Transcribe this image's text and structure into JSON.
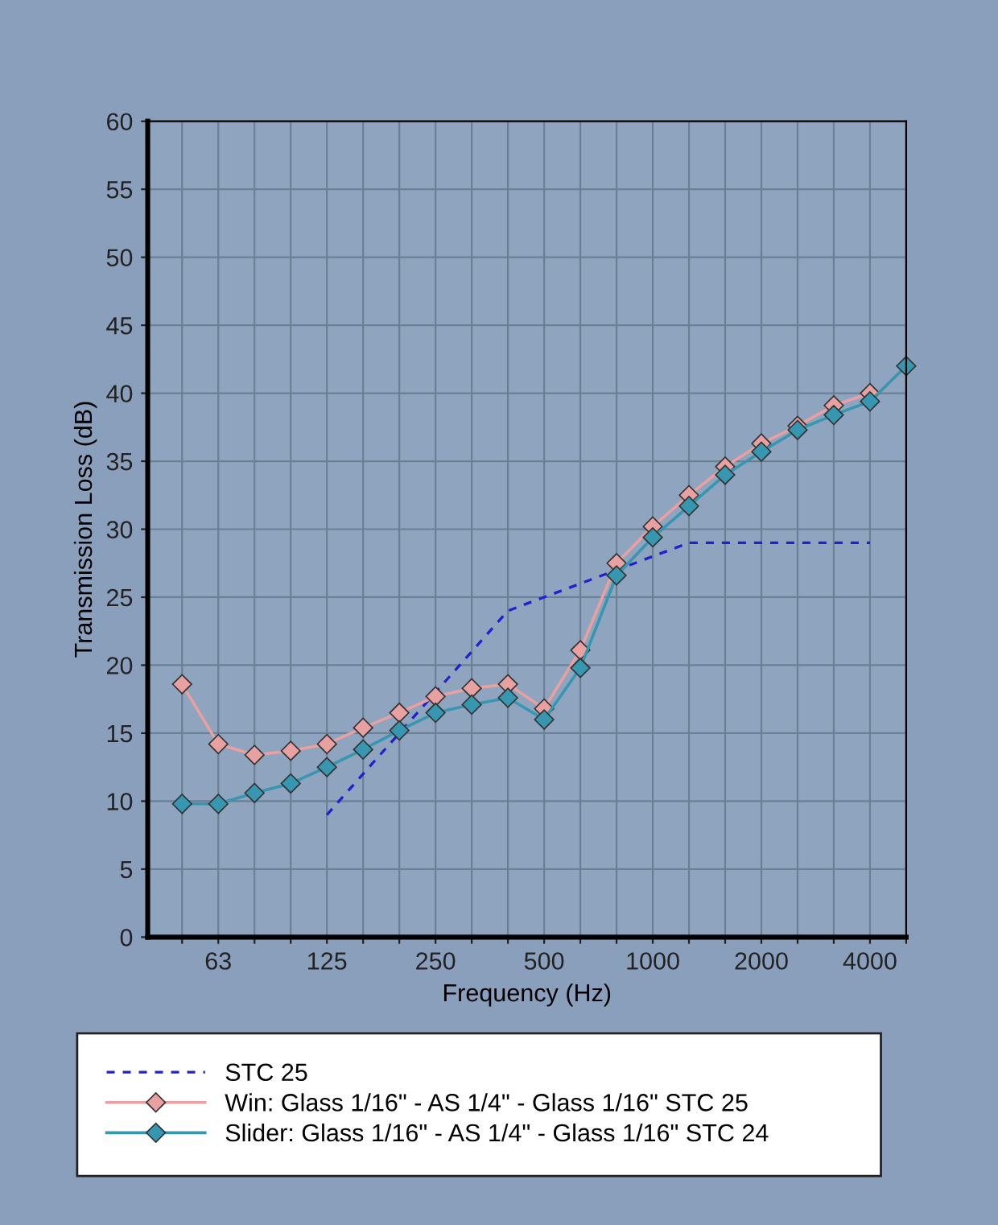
{
  "chart_data": {
    "type": "line",
    "xlabel": "Frequency (Hz)",
    "ylabel": "Transmission Loss (dB)",
    "categories": [
      null,
      "63",
      null,
      null,
      "125",
      null,
      null,
      "250",
      null,
      null,
      "500",
      null,
      null,
      "1000",
      null,
      null,
      "2000",
      null,
      null,
      "4000",
      null
    ],
    "ylim": [
      0,
      60
    ],
    "yticks": [
      0,
      5,
      10,
      15,
      20,
      25,
      30,
      35,
      40,
      45,
      50,
      55,
      60
    ],
    "grid": true,
    "legend": "bottom",
    "marker": "diamond",
    "series": [
      {
        "name": "STC 25",
        "color": "#2222cc",
        "line_style": "dashed",
        "marker": "none",
        "values": [
          null,
          null,
          null,
          null,
          9,
          12,
          15,
          18,
          21,
          24,
          25,
          26,
          27,
          28,
          29,
          29,
          29,
          29,
          29,
          29,
          null
        ]
      },
      {
        "name": "Win: Glass 1/16\" - AS 1/4\" - Glass 1/16\" STC 25",
        "color": "#e8a0a0",
        "values": [
          18.6,
          14.2,
          13.4,
          13.7,
          14.2,
          15.4,
          16.5,
          17.7,
          18.3,
          18.6,
          16.8,
          21.1,
          27.5,
          30.2,
          32.5,
          34.6,
          36.3,
          37.6,
          39.1,
          40.0,
          null
        ]
      },
      {
        "name": "Slider: Glass 1/16\" - AS 1/4\" - Glass 1/16\" STC 24",
        "color": "#3796b0",
        "values": [
          9.8,
          9.8,
          10.6,
          11.3,
          12.5,
          13.8,
          15.2,
          16.5,
          17.1,
          17.6,
          16.0,
          19.8,
          26.6,
          29.4,
          31.7,
          34.0,
          35.7,
          37.3,
          38.4,
          39.4,
          42.0
        ]
      }
    ]
  }
}
